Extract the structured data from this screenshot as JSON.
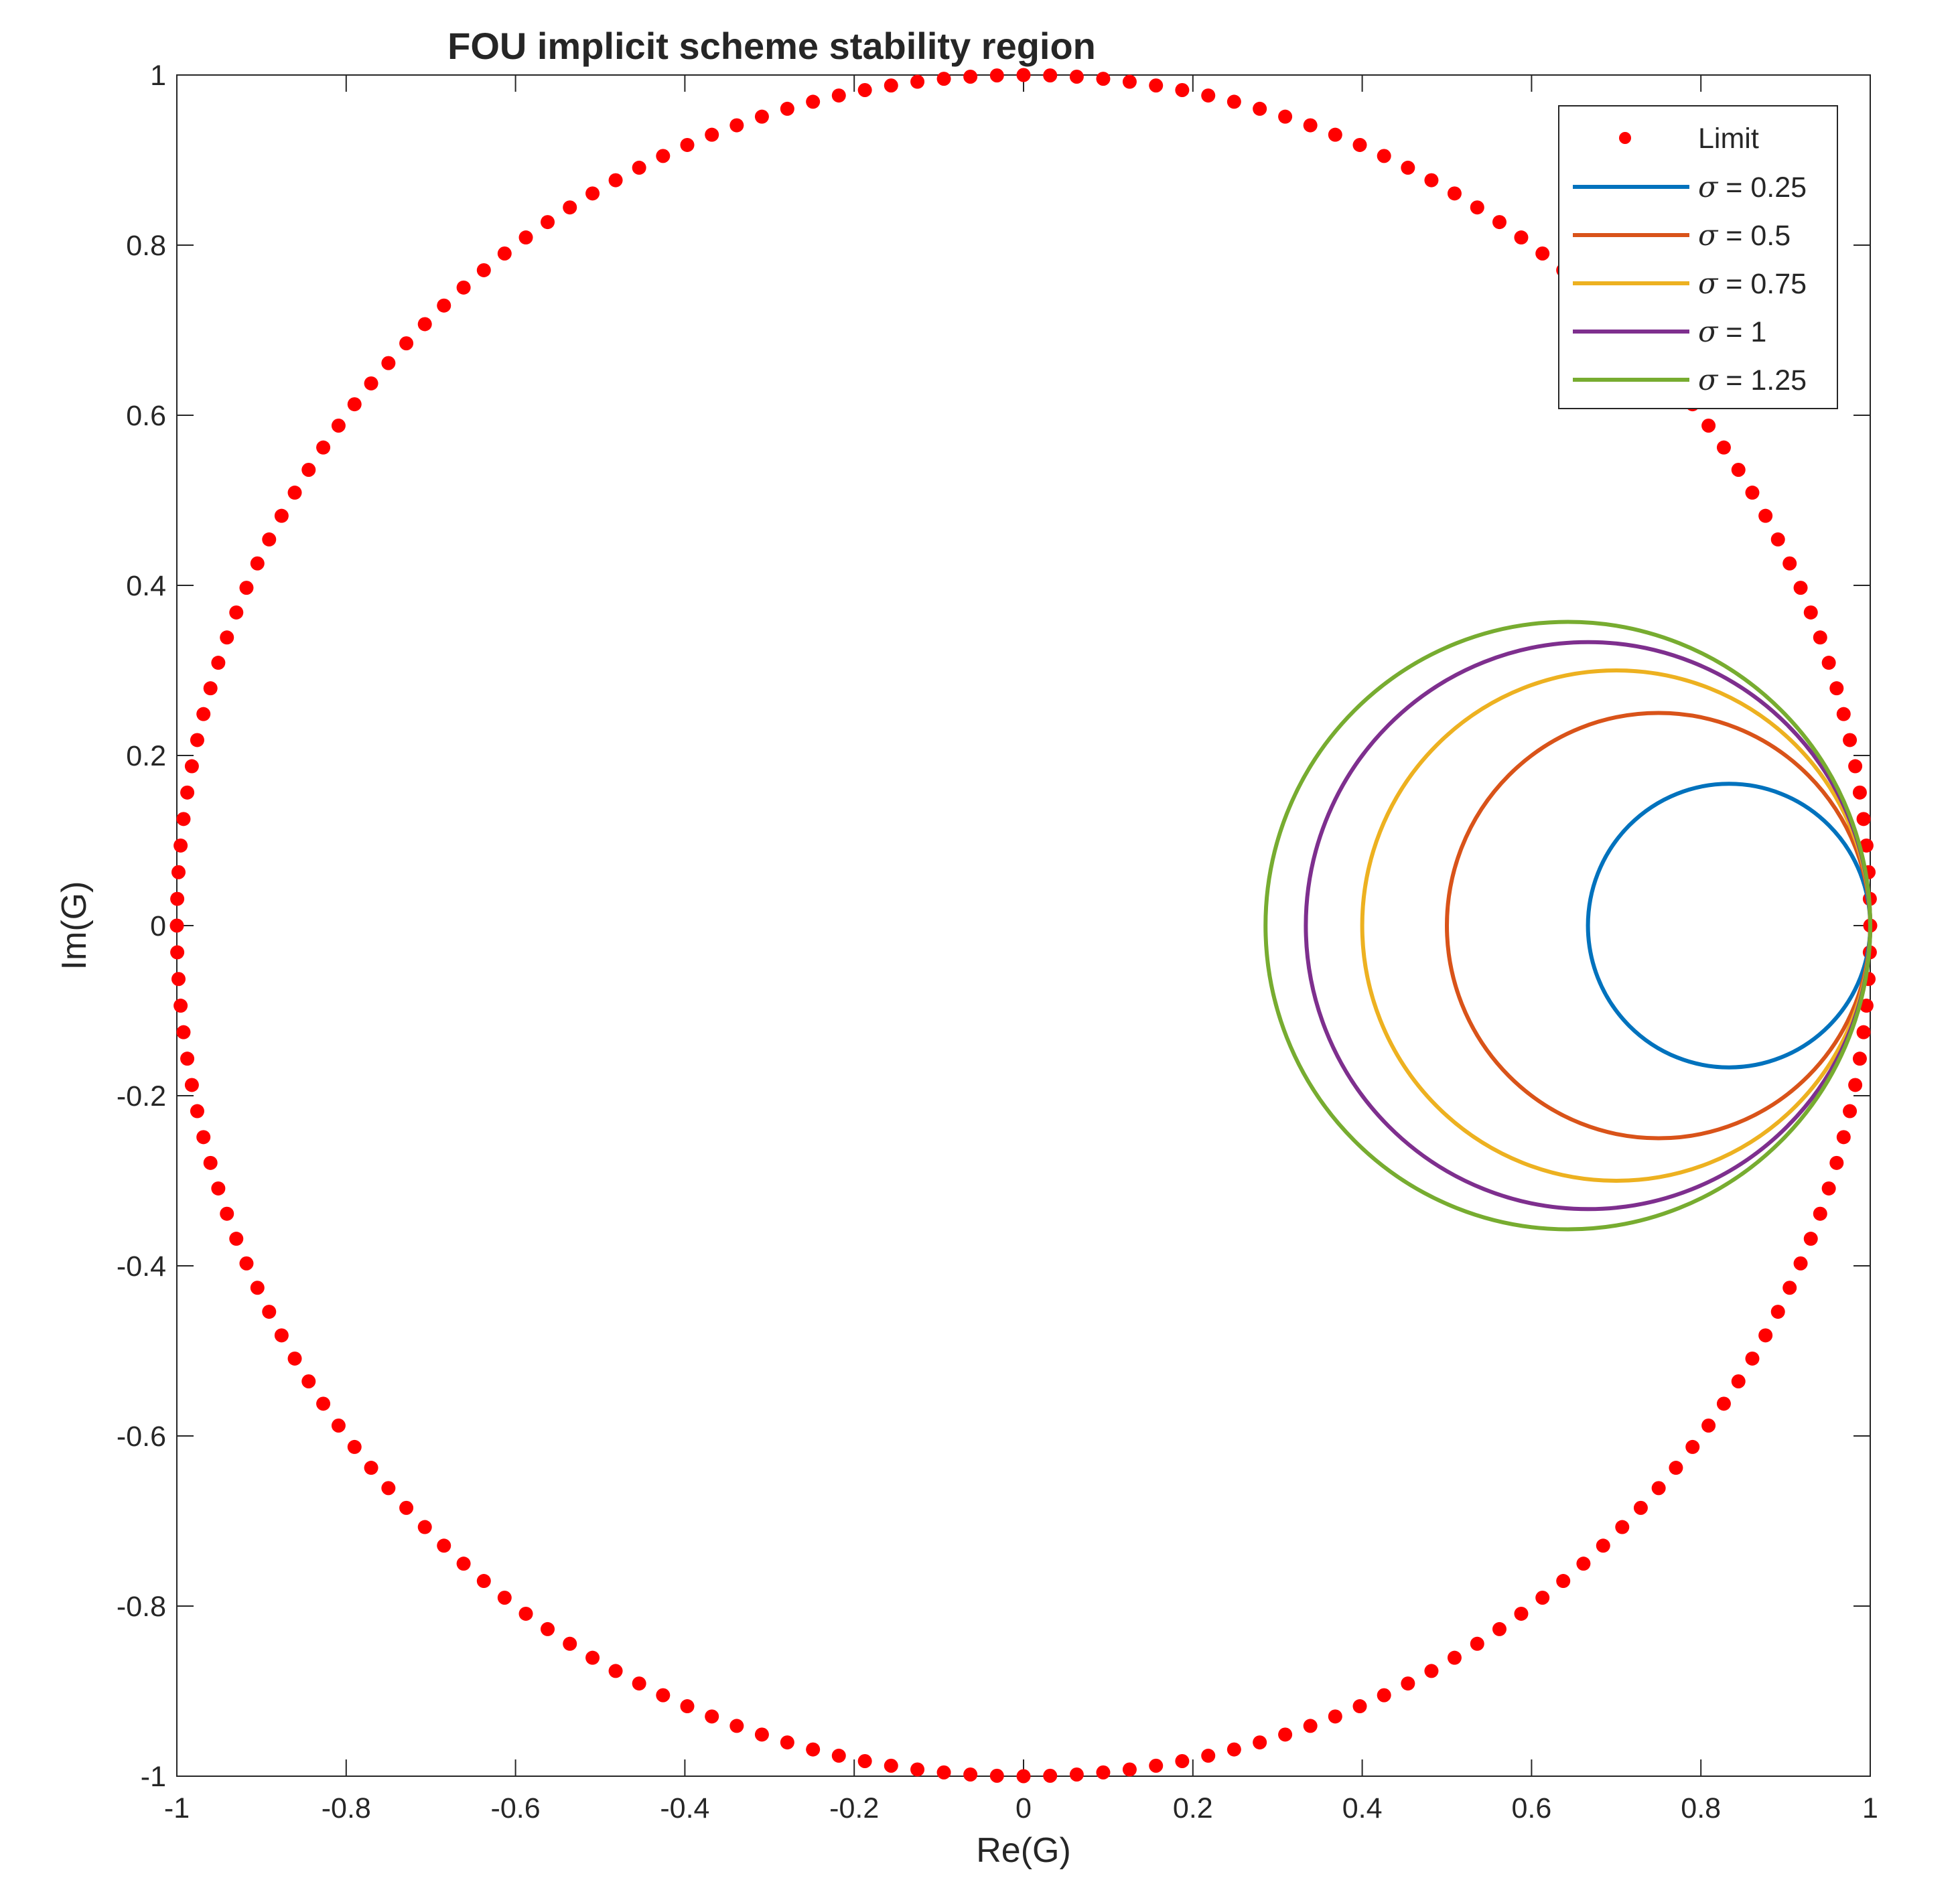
{
  "chart_data": {
    "type": "line",
    "title": "FOU implicit scheme stability region",
    "xlabel": "Re(G)",
    "ylabel": "Im(G)",
    "xlim": [
      -1,
      1
    ],
    "ylim": [
      -1,
      1
    ],
    "xticks": [
      "-1",
      "-0.8",
      "-0.6",
      "-0.4",
      "-0.2",
      "0",
      "0.2",
      "0.4",
      "0.6",
      "0.8",
      "1"
    ],
    "yticks": [
      "1",
      "0.8",
      "0.6",
      "0.4",
      "0.2",
      "0",
      "-0.2",
      "-0.4",
      "-0.6",
      "-0.8",
      "-1"
    ],
    "grid": false,
    "legend_position": "top-right",
    "limit": {
      "name": "Limit",
      "shape": "unit circle",
      "center": [
        0,
        0
      ],
      "radius": 1,
      "color": "#ff0000",
      "marker": "dot"
    },
    "series": [
      {
        "symbol": "σ",
        "label": " = 0.25",
        "sigma": 0.25,
        "center": [
          0.8333,
          0
        ],
        "radius": 0.1667,
        "color": "#0072bd"
      },
      {
        "symbol": "σ",
        "label": " = 0.5",
        "sigma": 0.5,
        "center": [
          0.75,
          0
        ],
        "radius": 0.25,
        "color": "#d95319"
      },
      {
        "symbol": "σ",
        "label": " = 0.75",
        "sigma": 0.75,
        "center": [
          0.7,
          0
        ],
        "radius": 0.3,
        "color": "#edb120"
      },
      {
        "symbol": "σ",
        "label": " = 1",
        "sigma": 1,
        "center": [
          0.6667,
          0
        ],
        "radius": 0.3333,
        "color": "#7e2f8e"
      },
      {
        "symbol": "σ",
        "label": " = 1.25",
        "sigma": 1.25,
        "center": [
          0.6429,
          0
        ],
        "radius": 0.3571,
        "color": "#77ac30"
      }
    ]
  }
}
